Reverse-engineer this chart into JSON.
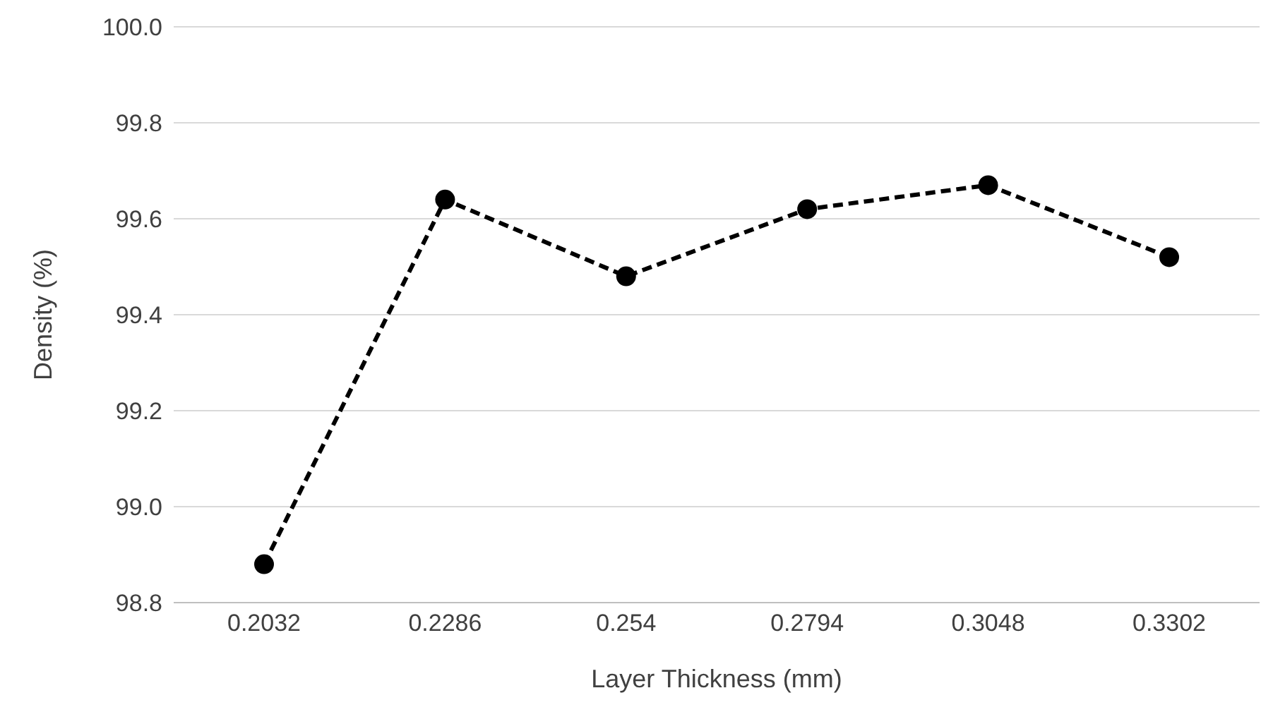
{
  "chart_data": {
    "type": "line",
    "xlabel": "Layer Thickness (mm)",
    "ylabel": "Density (%)",
    "categories": [
      "0.2032",
      "0.2286",
      "0.254",
      "0.2794",
      "0.3048",
      "0.3302"
    ],
    "series": [
      {
        "color": "#000000",
        "values": [
          98.88,
          99.64,
          99.48,
          99.62,
          99.67,
          99.52
        ]
      }
    ],
    "ylim": [
      98.8,
      100.0
    ],
    "yticks": [
      {
        "value": 98.8,
        "label": "98.8"
      },
      {
        "value": 99.0,
        "label": "99.0"
      },
      {
        "value": 99.2,
        "label": "99.2"
      },
      {
        "value": 99.4,
        "label": "99.4"
      },
      {
        "value": 99.6,
        "label": "99.6"
      },
      {
        "value": 99.8,
        "label": "99.8"
      },
      {
        "value": 100.0,
        "label": "100.0"
      }
    ],
    "grid": "y",
    "marker": "circle",
    "line_style": "dashed"
  }
}
